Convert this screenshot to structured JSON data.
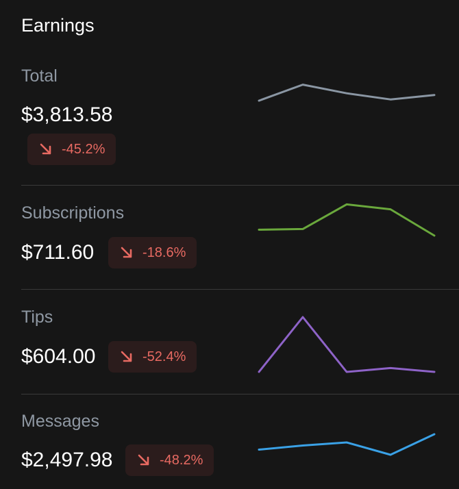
{
  "header": {
    "title": "Earnings"
  },
  "rows": [
    {
      "label": "Total",
      "amount": "$3,813.58",
      "change": "-45.2%",
      "trend_direction": "down",
      "sparkline": {
        "color": "#8a96a3",
        "values": [
          0.25,
          0.9,
          0.55,
          0.3,
          0.48
        ]
      }
    },
    {
      "label": "Subscriptions",
      "amount": "$711.60",
      "change": "-18.6%",
      "trend_direction": "down",
      "sparkline": {
        "color": "#6aa83c",
        "values": [
          0.18,
          0.2,
          0.95,
          0.8,
          0.0
        ]
      }
    },
    {
      "label": "Tips",
      "amount": "$604.00",
      "change": "-52.4%",
      "trend_direction": "down",
      "sparkline": {
        "color": "#8e63c8",
        "values": [
          0.0,
          1.0,
          0.0,
          0.07,
          0.0
        ]
      }
    },
    {
      "label": "Messages",
      "amount": "$2,497.98",
      "change": "-48.2%",
      "trend_direction": "down",
      "sparkline": {
        "color": "#3aa1e6",
        "values": [
          0.25,
          0.45,
          0.6,
          0.0,
          1.0
        ]
      }
    }
  ]
}
